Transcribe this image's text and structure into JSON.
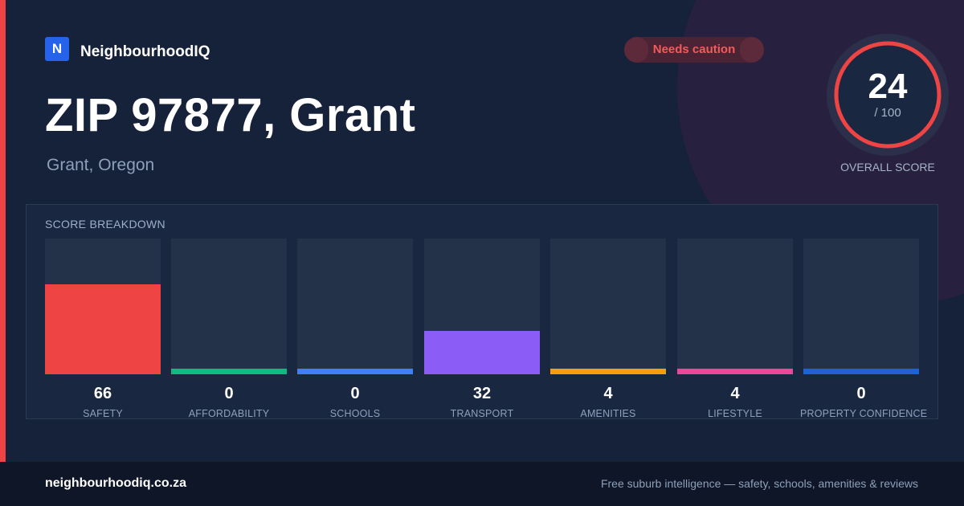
{
  "brand": {
    "logo_letter": "N",
    "name": "NeighbourhoodIQ",
    "logo_color": "#2563eb"
  },
  "status_badge": {
    "label": "Needs caution",
    "color": "#f25b5b"
  },
  "location": {
    "title": "ZIP 97877, Grant",
    "subtitle": "Grant, Oregon"
  },
  "overall": {
    "score": "24",
    "denominator": "/ 100",
    "score_value": 24,
    "max": 100,
    "label": "OVERALL SCORE",
    "ring_color": "#ef4444"
  },
  "breakdown": {
    "title": "SCORE BREAKDOWN",
    "max": 100,
    "items": [
      {
        "label": "SAFETY",
        "value": 66,
        "color": "#ef4444"
      },
      {
        "label": "AFFORDABILITY",
        "value": 0,
        "color": "#10b981"
      },
      {
        "label": "SCHOOLS",
        "value": 0,
        "color": "#3b82f6"
      },
      {
        "label": "TRANSPORT",
        "value": 32,
        "color": "#8b5cf6"
      },
      {
        "label": "AMENITIES",
        "value": 4,
        "color": "#f59e0b"
      },
      {
        "label": "LIFESTYLE",
        "value": 4,
        "color": "#ec4899"
      },
      {
        "label": "PROPERTY CONFIDENCE",
        "value": 0,
        "color": "#1d63d6"
      }
    ]
  },
  "footer": {
    "site": "neighbourhoodiq.co.za",
    "tagline": "Free suburb intelligence — safety, schools, amenities & reviews"
  }
}
